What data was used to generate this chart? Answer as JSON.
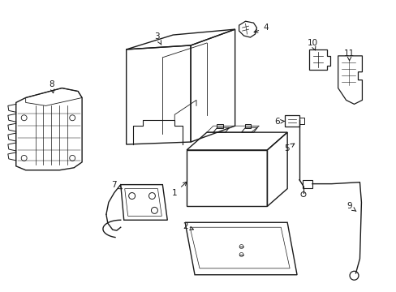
{
  "background_color": "#ffffff",
  "line_color": "#1a1a1a",
  "line_width": 1.0,
  "label_fontsize": 7.5
}
